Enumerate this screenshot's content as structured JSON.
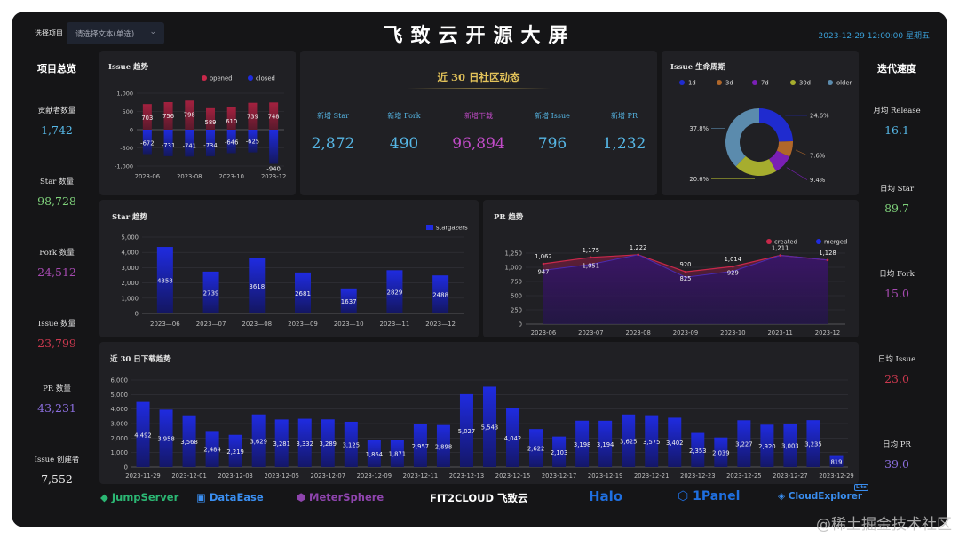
{
  "header": {
    "select_label": "选择项目",
    "select_placeholder": "请选择文本(单选)",
    "title": "飞致云开源大屏",
    "datetime": "2023-12-29 12:00:00 星期五"
  },
  "overview": {
    "title": "项目总览",
    "items": [
      {
        "label": "贡献者数量",
        "value": "1,742",
        "color": "#56b7e6"
      },
      {
        "label": "Star 数量",
        "value": "98,728",
        "color": "#7ed07a"
      },
      {
        "label": "Fork 数量",
        "value": "24,512",
        "color": "#a54ab0"
      },
      {
        "label": "Issue 数量",
        "value": "23,799",
        "color": "#c9384e"
      },
      {
        "label": "PR 数量",
        "value": "43,231",
        "color": "#8c6fe0"
      },
      {
        "label": "Issue 创建者",
        "value": "7,552",
        "color": "#e6e6e6"
      }
    ]
  },
  "velocity": {
    "title": "迭代速度",
    "items": [
      {
        "label": "月均 Release",
        "value": "16.1",
        "color": "#56b7e6"
      },
      {
        "label": "日均 Star",
        "value": "89.7",
        "color": "#7ed07a"
      },
      {
        "label": "日均 Fork",
        "value": "15.0",
        "color": "#a54ab0"
      },
      {
        "label": "日均 Issue",
        "value": "23.0",
        "color": "#c9384e"
      },
      {
        "label": "日均 PR",
        "value": "39.0",
        "color": "#8c6fe0"
      }
    ]
  },
  "community": {
    "title": "近 30 日社区动态",
    "stats": [
      {
        "label": "新增 Star",
        "value": "2,872",
        "color": "#56b7e6"
      },
      {
        "label": "新增 Fork",
        "value": "490",
        "color": "#56b7e6"
      },
      {
        "label": "新增下载",
        "value": "96,894",
        "color": "#c24bc9"
      },
      {
        "label": "新增 Issue",
        "value": "796",
        "color": "#56b7e6"
      },
      {
        "label": "新增 PR",
        "value": "1,232",
        "color": "#56b7e6"
      }
    ]
  },
  "logos": {
    "jumpserver": "JumpServer",
    "dataease": "DataEase",
    "metersphere": "MeterSphere",
    "fit2cloud": "FIT2CLOUD 飞致云",
    "halo": "Halo",
    "onepanel": "1Panel",
    "cloudexplorer": "CloudExplorer",
    "lite": "Lite"
  },
  "watermark": "@稀土掘金技术社区",
  "chart_data": [
    {
      "id": "issue",
      "type": "bar",
      "title": "Issue 趋势",
      "categories": [
        "2023-06",
        "2023-07",
        "2023-08",
        "2023-09",
        "2023-10",
        "2023-11",
        "2023-12"
      ],
      "x_tick_labels": [
        "2023-06",
        "2023-08",
        "2023-10",
        "2023-12"
      ],
      "series": [
        {
          "name": "opened",
          "color": "#c8284a",
          "values": [
            703,
            756,
            798,
            589,
            610,
            739,
            748
          ]
        },
        {
          "name": "closed",
          "color": "#1f2be0",
          "values": [
            -672,
            -731,
            -741,
            -734,
            -646,
            -625,
            -940
          ]
        }
      ],
      "ylim": [
        -1000,
        1000
      ],
      "yticks": [
        "1,000",
        "500",
        "0",
        "-500",
        "-1,000"
      ],
      "ytick_values": [
        1000,
        500,
        0,
        -500,
        -1000
      ],
      "legend": "top-right"
    },
    {
      "id": "lifecycle",
      "type": "pie",
      "title": "Issue 生命周期",
      "categories": [
        "1d",
        "3d",
        "7d",
        "30d",
        "older"
      ],
      "colors": [
        "#1f2bcf",
        "#b0672a",
        "#7a1fb5",
        "#a6ad2e",
        "#5b8bad"
      ],
      "values": [
        24.6,
        7.6,
        9.4,
        20.6,
        37.8
      ],
      "labels": [
        "24.6%",
        "7.6%",
        "9.4%",
        "20.6%",
        "37.8%"
      ],
      "legend": "top"
    },
    {
      "id": "star",
      "type": "bar",
      "title": "Star 趋势",
      "categories": [
        "2023-06",
        "2023-07",
        "2023-08",
        "2023-09",
        "2023-10",
        "2023-11",
        "2023-12"
      ],
      "series": [
        {
          "name": "stargazers",
          "color": "#1f2be0",
          "values": [
            4358,
            2739,
            3618,
            2681,
            1637,
            2829,
            2488
          ]
        }
      ],
      "ylim": [
        0,
        5000
      ],
      "yticks": [
        "5,000",
        "4,000",
        "3,000",
        "2,000",
        "1,000",
        "0"
      ],
      "ytick_values": [
        5000,
        4000,
        3000,
        2000,
        1000,
        0
      ],
      "legend": "top-right"
    },
    {
      "id": "pr",
      "type": "area",
      "title": "PR 趋势",
      "categories": [
        "2023-06",
        "2023-07",
        "2023-08",
        "2023-09",
        "2023-10",
        "2023-11",
        "2023-12"
      ],
      "series": [
        {
          "name": "created",
          "color": "#c8284a",
          "values": [
            1062,
            1175,
            1222,
            920,
            1014,
            1211,
            1128
          ]
        },
        {
          "name": "merged",
          "color": "#1f2be0",
          "values": [
            947,
            1051,
            1222,
            825,
            929,
            1211,
            1128
          ]
        }
      ],
      "point_labels": [
        [
          "1,062",
          "947"
        ],
        [
          "1,175",
          "1,051"
        ],
        [
          "1,222"
        ],
        [
          "920",
          "825"
        ],
        [
          "1,014",
          "929"
        ],
        [
          "1,211"
        ],
        [
          "1,128"
        ]
      ],
      "ylim": [
        0,
        1250
      ],
      "yticks": [
        "1,250",
        "1,000",
        "750",
        "500",
        "250",
        "0"
      ],
      "ytick_values": [
        1250,
        1000,
        750,
        500,
        250,
        0
      ],
      "legend": "top-right"
    },
    {
      "id": "download",
      "type": "bar",
      "title": "近 30 日下载趋势",
      "categories": [
        "2023-11-29",
        "2023-11-30",
        "2023-12-01",
        "2023-12-02",
        "2023-12-03",
        "2023-12-04",
        "2023-12-05",
        "2023-12-06",
        "2023-12-07",
        "2023-12-08",
        "2023-12-09",
        "2023-12-10",
        "2023-12-11",
        "2023-12-12",
        "2023-12-13",
        "2023-12-14",
        "2023-12-15",
        "2023-12-16",
        "2023-12-17",
        "2023-12-18",
        "2023-12-19",
        "2023-12-20",
        "2023-12-21",
        "2023-12-22",
        "2023-12-23",
        "2023-12-24",
        "2023-12-25",
        "2023-12-26",
        "2023-12-27",
        "2023-12-28",
        "2023-12-29"
      ],
      "x_tick_labels": [
        "2023-11-29",
        "2023-12-01",
        "2023-12-03",
        "2023-12-05",
        "2023-12-07",
        "2023-12-09",
        "2023-12-11",
        "2023-12-13",
        "2023-12-15",
        "2023-12-17",
        "2023-12-19",
        "2023-12-21",
        "2023-12-23",
        "2023-12-25",
        "2023-12-27",
        "2023-12-29"
      ],
      "series": [
        {
          "name": "downloads",
          "color": "#1f2be0",
          "values": [
            4492,
            3958,
            3568,
            2484,
            2219,
            3629,
            3281,
            3332,
            3289,
            3125,
            1864,
            1871,
            2957,
            2898,
            5027,
            5543,
            4042,
            2622,
            2103,
            3198,
            3194,
            3625,
            3575,
            3402,
            2353,
            2039,
            3227,
            2920,
            3003,
            3235,
            819
          ]
        }
      ],
      "ylim": [
        0,
        6000
      ],
      "yticks": [
        "6,000",
        "5,000",
        "4,000",
        "3,000",
        "2,000",
        "1,000",
        "0"
      ],
      "ytick_values": [
        6000,
        5000,
        4000,
        3000,
        2000,
        1000,
        0
      ]
    }
  ]
}
